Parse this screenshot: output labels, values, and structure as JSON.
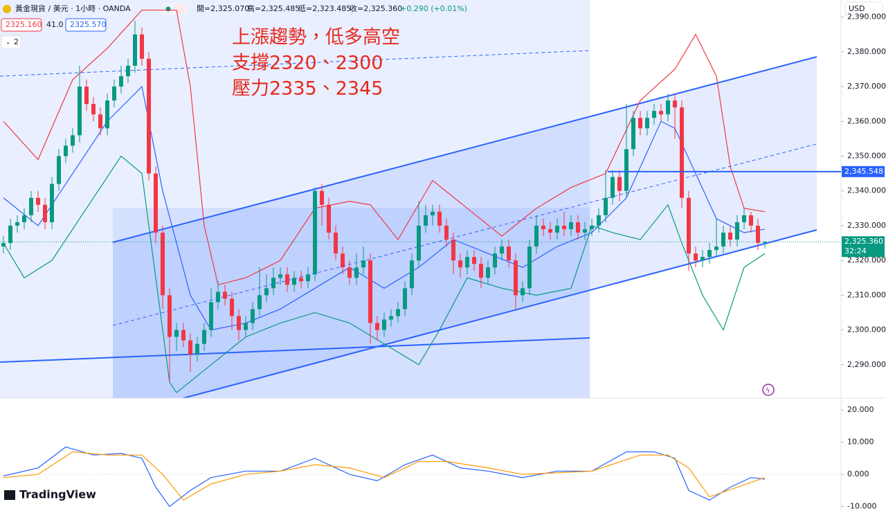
{
  "header": {
    "symbol": "黃金現貨 / 美元 · 1小時 · OANDA",
    "open": "開=2,325.070",
    "high": "高=2,325.485",
    "low": "低=2,323.485",
    "close": "收=2,325.360",
    "change": "+0.290 (+0.01%)",
    "bid": "2325.160",
    "spread": "41.0",
    "ask": "2325.570",
    "indicators_count": "2",
    "currency": "USD",
    "brand": "TradingView"
  },
  "annotation": [
    "上漲趨勢，低多高空",
    "支撐2320、2300",
    "壓力2335、2345"
  ],
  "chart_data": [
    {
      "type": "candlestick",
      "up_color": "#089981",
      "down_color": "#f23645",
      "open": [
        2324,
        2325,
        2330,
        2331,
        2333,
        2338,
        2336,
        2331,
        2342,
        2350,
        2353,
        2356,
        2370,
        2365,
        2362,
        2358,
        2366,
        2370,
        2373,
        2376,
        2385,
        2378,
        2345,
        2328,
        2310,
        2298,
        2300,
        2297,
        2293,
        2296,
        2300,
        2308,
        2311,
        2309,
        2304,
        2300,
        2302,
        2306,
        2310,
        2312,
        2315,
        2316,
        2313,
        2315,
        2314,
        2316,
        2340,
        2336,
        2328,
        2322,
        2318,
        2315,
        2318,
        2320,
        2302,
        2300,
        2303,
        2304,
        2306,
        2312,
        2320,
        2330,
        2333,
        2334,
        2330,
        2326,
        2320,
        2318,
        2321,
        2319,
        2315,
        2318,
        2322,
        2324,
        2320,
        2310,
        2312,
        2324,
        2330,
        2329,
        2328,
        2330,
        2329,
        2331,
        2328,
        2329,
        2330,
        2333,
        2338,
        2344,
        2340,
        2352,
        2361,
        2358,
        2361,
        2363,
        2362,
        2366,
        2364,
        2338,
        2322,
        2320,
        2321,
        2323,
        2324,
        2328,
        2326,
        2331,
        2333,
        2330,
        2325.07
      ],
      "high": [
        2327,
        2332,
        2333,
        2335,
        2340,
        2340,
        2338,
        2344,
        2352,
        2355,
        2358,
        2376,
        2372,
        2367,
        2364,
        2368,
        2372,
        2376,
        2378,
        2389,
        2387,
        2380,
        2347,
        2330,
        2312,
        2302,
        2302,
        2299,
        2298,
        2302,
        2312,
        2314,
        2313,
        2311,
        2306,
        2304,
        2308,
        2318,
        2316,
        2318,
        2318,
        2318,
        2317,
        2317,
        2318,
        2341,
        2342,
        2338,
        2330,
        2324,
        2320,
        2322,
        2324,
        2322,
        2304,
        2305,
        2306,
        2308,
        2314,
        2322,
        2337,
        2336,
        2336,
        2336,
        2332,
        2328,
        2322,
        2323,
        2323,
        2321,
        2320,
        2324,
        2326,
        2326,
        2322,
        2314,
        2326,
        2333,
        2332,
        2331,
        2332,
        2334,
        2333,
        2333,
        2331,
        2332,
        2335,
        2346,
        2346,
        2346,
        2365,
        2363,
        2363,
        2363,
        2365,
        2365,
        2368,
        2368,
        2366,
        2340,
        2324,
        2323,
        2325,
        2332,
        2330,
        2330,
        2333,
        2335,
        2334,
        2332,
        2325.485
      ],
      "low": [
        2322,
        2323,
        2328,
        2329,
        2331,
        2334,
        2329,
        2329,
        2340,
        2348,
        2351,
        2354,
        2363,
        2360,
        2356,
        2356,
        2364,
        2368,
        2371,
        2374,
        2376,
        2343,
        2325,
        2306,
        2285,
        2294,
        2295,
        2288,
        2291,
        2294,
        2298,
        2306,
        2307,
        2300,
        2297,
        2298,
        2300,
        2304,
        2308,
        2310,
        2313,
        2311,
        2311,
        2312,
        2312,
        2314,
        2330,
        2326,
        2320,
        2316,
        2313,
        2313,
        2316,
        2296,
        2297,
        2298,
        2301,
        2302,
        2304,
        2310,
        2318,
        2328,
        2330,
        2328,
        2324,
        2316,
        2315,
        2316,
        2317,
        2312,
        2313,
        2316,
        2320,
        2318,
        2306,
        2308,
        2310,
        2322,
        2327,
        2326,
        2326,
        2327,
        2327,
        2326,
        2326,
        2327,
        2328,
        2331,
        2336,
        2337,
        2338,
        2350,
        2356,
        2356,
        2359,
        2360,
        2360,
        2355,
        2335,
        2317,
        2318,
        2318,
        2319,
        2321,
        2322,
        2324,
        2324,
        2329,
        2328,
        2323,
        2323.485
      ],
      "close": [
        2325,
        2330,
        2331,
        2333,
        2338,
        2336,
        2331,
        2342,
        2350,
        2353,
        2356,
        2370,
        2365,
        2362,
        2358,
        2366,
        2370,
        2373,
        2376,
        2385,
        2378,
        2345,
        2328,
        2310,
        2298,
        2300,
        2297,
        2293,
        2296,
        2300,
        2308,
        2311,
        2309,
        2304,
        2300,
        2302,
        2306,
        2310,
        2312,
        2315,
        2316,
        2313,
        2315,
        2314,
        2316,
        2340,
        2336,
        2328,
        2322,
        2318,
        2315,
        2318,
        2320,
        2302,
        2300,
        2303,
        2304,
        2306,
        2312,
        2320,
        2330,
        2333,
        2334,
        2330,
        2326,
        2320,
        2318,
        2321,
        2319,
        2315,
        2318,
        2322,
        2324,
        2320,
        2310,
        2312,
        2324,
        2330,
        2329,
        2328,
        2330,
        2329,
        2331,
        2328,
        2329,
        2330,
        2333,
        2338,
        2344,
        2340,
        2352,
        2361,
        2358,
        2361,
        2363,
        2362,
        2366,
        2364,
        2338,
        2322,
        2320,
        2321,
        2323,
        2324,
        2328,
        2326,
        2331,
        2333,
        2330,
        2325.07,
        2325.36
      ],
      "ylim": [
        2280.4,
        2394.9
      ],
      "yticks": [
        {
          "value": 2290,
          "label": "2,290.000"
        },
        {
          "value": 2300,
          "label": "2,300.000"
        },
        {
          "value": 2310,
          "label": "2,310.000"
        },
        {
          "value": 2320,
          "label": "2,320.000"
        },
        {
          "value": 2330,
          "label": "2,330.000"
        },
        {
          "value": 2340,
          "label": "2,340.000"
        },
        {
          "value": 2350,
          "label": "2,350.000"
        },
        {
          "value": 2360,
          "label": "2,360.000"
        },
        {
          "value": 2370,
          "label": "2,370.000"
        },
        {
          "value": 2380,
          "label": "2,380.000"
        },
        {
          "value": 2390,
          "label": "2,390.000"
        }
      ],
      "series": [
        {
          "color": "#f23645",
          "x": [
            0,
            5,
            10,
            15,
            20,
            25,
            27,
            29,
            31,
            35,
            40,
            45,
            50,
            53,
            57,
            62,
            67,
            72,
            77,
            82,
            87,
            92,
            97,
            100,
            103,
            105,
            107,
            110
          ],
          "values": [
            2360,
            2349,
            2372,
            2381,
            2392,
            2392,
            2370,
            2330,
            2313,
            2315,
            2320,
            2335,
            2337,
            2336,
            2326,
            2343,
            2335,
            2327,
            2335,
            2341,
            2345,
            2366,
            2375,
            2385,
            2373,
            2347,
            2335,
            2334
          ]
        },
        {
          "color": "#2962ff",
          "x": [
            0,
            5,
            10,
            15,
            20,
            23,
            27,
            30,
            35,
            40,
            45,
            50,
            55,
            60,
            65,
            70,
            75,
            80,
            85,
            90,
            95,
            97,
            100,
            103,
            107,
            110
          ],
          "values": [
            2338,
            2330,
            2345,
            2360,
            2370,
            2340,
            2310,
            2300,
            2302,
            2306,
            2312,
            2318,
            2312,
            2318,
            2326,
            2322,
            2318,
            2324,
            2328,
            2338,
            2360,
            2358,
            2345,
            2332,
            2328,
            2329
          ]
        },
        {
          "color": "#089981",
          "x": [
            0,
            3,
            7,
            12,
            17,
            20,
            22,
            24,
            25,
            30,
            35,
            40,
            45,
            50,
            55,
            60,
            63,
            67,
            72,
            77,
            82,
            85,
            88,
            92,
            96,
            98,
            101,
            104,
            107,
            110
          ],
          "values": [
            2325,
            2315,
            2320,
            2335,
            2350,
            2345,
            2315,
            2285,
            2282,
            2290,
            2298,
            2302,
            2305,
            2302,
            2296,
            2290,
            2300,
            2315,
            2312,
            2310,
            2312,
            2330,
            2328,
            2326,
            2336,
            2325,
            2310,
            2300,
            2318,
            2322
          ]
        }
      ],
      "price_line": {
        "value": 2345.548,
        "label": "2,345.548"
      },
      "last_price": {
        "value": 2325.36,
        "label": "2,325.360"
      },
      "countdown": "32:24"
    },
    {
      "type": "line",
      "ylim": [
        -11.4,
        23.7
      ],
      "yticks": [
        {
          "value": -10,
          "label": "-10.000"
        },
        {
          "value": 0,
          "label": "0.000"
        },
        {
          "value": 10,
          "label": "10.000"
        },
        {
          "value": 20,
          "label": "20.000"
        }
      ],
      "series": [
        {
          "color": "#2962ff",
          "x": [
            0,
            5,
            9,
            13,
            17,
            20,
            22,
            24,
            27,
            30,
            35,
            40,
            45,
            50,
            54,
            58,
            62,
            66,
            70,
            75,
            80,
            85,
            90,
            94,
            97,
            99,
            102,
            105,
            108,
            110
          ],
          "values": [
            -0.5,
            2,
            8.5,
            6,
            6.5,
            5,
            -4,
            -10,
            -5,
            -1,
            1,
            1,
            5,
            0,
            -2,
            3,
            6,
            2,
            1,
            -1,
            1,
            1,
            7,
            7,
            5,
            -5,
            -8,
            -4,
            -1,
            -1.5
          ]
        },
        {
          "color": "#ff9800",
          "x": [
            0,
            5,
            10,
            15,
            20,
            23,
            26,
            30,
            35,
            40,
            45,
            50,
            55,
            60,
            64,
            70,
            75,
            80,
            85,
            92,
            96,
            99,
            102,
            106,
            110
          ],
          "values": [
            -1,
            0,
            7,
            6,
            6,
            0,
            -8,
            -3,
            0,
            1,
            3,
            2,
            -1,
            4,
            4,
            2,
            0,
            0.5,
            1,
            6,
            6,
            2,
            -7,
            -4,
            -1
          ]
        }
      ]
    }
  ]
}
